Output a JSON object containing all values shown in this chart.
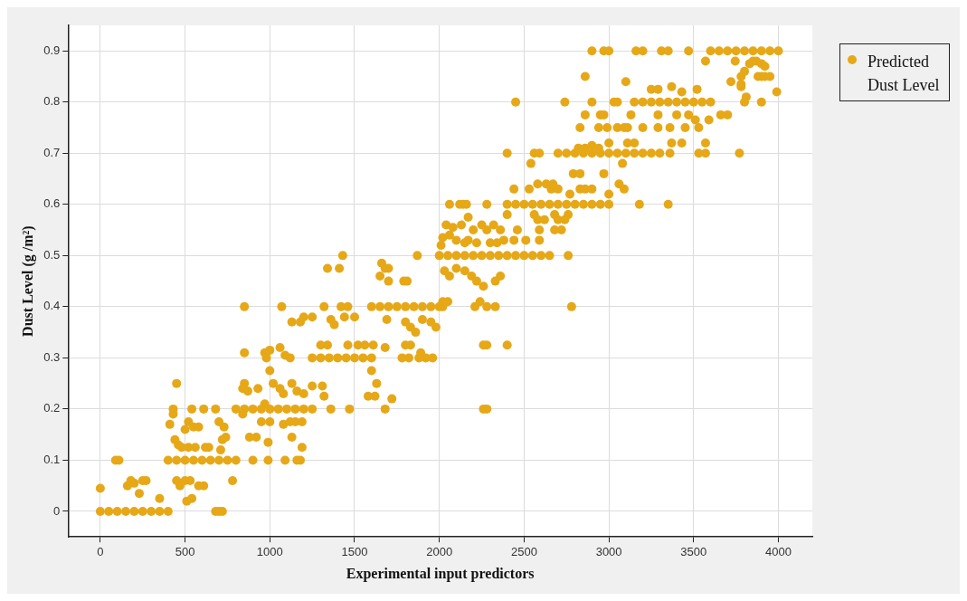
{
  "chart_data": {
    "type": "scatter",
    "xlabel": "Experimental input predictors",
    "ylabel": "Dust Level (g /m²)",
    "xlim": [
      -190,
      4200
    ],
    "ylim": [
      -0.05,
      0.95
    ],
    "xticks": [
      0,
      500,
      1000,
      1500,
      2000,
      2500,
      3000,
      3500,
      4000
    ],
    "yticks": [
      0,
      0.1,
      0.2,
      0.3,
      0.4,
      0.5,
      0.6,
      0.7,
      0.8,
      0.9
    ],
    "grid": true,
    "legend": "top right",
    "marker": "circle",
    "series": [
      {
        "name": "Predicted Dust Level",
        "color": "#e6a817",
        "x": [
          0,
          50,
          100,
          150,
          200,
          250,
          300,
          350,
          400,
          680,
          700,
          720,
          0,
          90,
          110,
          160,
          180,
          200,
          230,
          250,
          270,
          350,
          400,
          450,
          500,
          550,
          600,
          650,
          700,
          750,
          800,
          900,
          990,
          1090,
          1160,
          1180,
          450,
          430,
          430,
          410,
          440,
          460,
          480,
          520,
          560,
          620,
          640,
          500,
          520,
          550,
          580,
          540,
          610,
          680,
          700,
          730,
          720,
          710,
          740,
          450,
          470,
          500,
          530,
          580,
          610,
          510,
          540,
          780,
          800,
          850,
          900,
          950,
          1000,
          1050,
          1100,
          1150,
          1200,
          1250,
          850,
          840,
          870,
          930,
          840,
          880,
          920,
          990,
          970,
          1000,
          1020,
          1060,
          1080,
          1130,
          1160,
          1200,
          1250,
          950,
          1000,
          1080,
          1120,
          1150,
          1190,
          1130,
          1190,
          1360,
          1470,
          850,
          1070,
          850,
          970,
          980,
          1000,
          1060,
          1090,
          1120,
          1130,
          1180,
          1200,
          1250,
          1320,
          1360,
          1380,
          1420,
          1440,
          1460,
          1500,
          1340,
          1410,
          1430,
          1250,
          1300,
          1350,
          1400,
          1450,
          1500,
          1550,
          1600,
          1300,
          1340,
          1460,
          1520,
          1560,
          1610,
          1680,
          1600,
          1580,
          1620,
          1630,
          1680,
          1720,
          1310,
          1320,
          1600,
          1650,
          1700,
          1750,
          1800,
          1850,
          1900,
          1950,
          2000,
          1660,
          1680,
          1650,
          1700,
          1700,
          1790,
          1810,
          1870,
          1690,
          1800,
          1830,
          1860,
          1900,
          1950,
          1980,
          1800,
          1830,
          1780,
          1820,
          1880,
          1920,
          1960,
          1890,
          2020,
          2020,
          2000,
          2050,
          2100,
          2150,
          2200,
          2250,
          2300,
          2350,
          2400,
          2450,
          2500,
          2550,
          2600,
          2650,
          2060,
          2120,
          2140,
          2040,
          2080,
          2130,
          2170,
          2200,
          2020,
          2010,
          2060,
          2100,
          2150,
          2250,
          2280,
          2320,
          2360,
          2170,
          2220,
          2300,
          2340,
          2380,
          2030,
          2060,
          2100,
          2150,
          2190,
          2220,
          2260,
          2330,
          2360,
          2050,
          2210,
          2240,
          2280,
          2330,
          2260,
          2280,
          2400,
          2260,
          2280,
          2760,
          2780,
          2440,
          2510,
          2590,
          2400,
          2560,
          2680,
          2760,
          2580,
          2620,
          2700,
          2740,
          2460,
          2590,
          2680,
          2720,
          2400,
          2450,
          2500,
          2550,
          2600,
          2650,
          2700,
          2750,
          2800,
          2850,
          2900,
          2950,
          3000,
          2160,
          2280,
          3180,
          3350,
          2540,
          3080,
          2790,
          2830,
          2970,
          2580,
          2630,
          2670,
          3060,
          2770,
          3000,
          2440,
          2530,
          2660,
          2700,
          2830,
          2860,
          2900,
          3090,
          2700,
          2750,
          2800,
          2850,
          2900,
          2950,
          3000,
          3050,
          3100,
          3150,
          3200,
          3250,
          3300,
          2400,
          2560,
          2590,
          3360,
          3530,
          3570,
          3770,
          2820,
          2860,
          2900,
          2940,
          3000,
          3110,
          3150,
          3370,
          3430,
          3570,
          2830,
          2940,
          2990,
          3050,
          3090,
          3110,
          3200,
          3290,
          3360,
          3450,
          3530,
          2860,
          2950,
          2970,
          3130,
          3290,
          3400,
          3470,
          3510,
          3590,
          3660,
          3700,
          3150,
          3200,
          3250,
          3300,
          3350,
          3400,
          3450,
          3500,
          3550,
          3600,
          2450,
          2740,
          2900,
          3030,
          3050,
          3250,
          3290,
          3370,
          3430,
          3520,
          2860,
          3100,
          3720,
          3745,
          3780,
          3800,
          3830,
          3850,
          3870,
          3900,
          3920,
          3780,
          3880,
          3900,
          3920,
          3950,
          3990,
          3780,
          3800,
          3900,
          3810,
          3600,
          3650,
          3700,
          3750,
          3800,
          3850,
          3900,
          3950,
          4000,
          2900,
          2970,
          3000,
          3160,
          3200,
          3310,
          3350,
          3470,
          3570
        ],
        "values": [
          0,
          0,
          0,
          0,
          0,
          0,
          0,
          0,
          0,
          0,
          0,
          0,
          0.045,
          0.1,
          0.1,
          0.05,
          0.06,
          0.055,
          0.035,
          0.06,
          0.06,
          0.025,
          0.1,
          0.1,
          0.1,
          0.1,
          0.1,
          0.1,
          0.1,
          0.1,
          0.1,
          0.1,
          0.1,
          0.1,
          0.1,
          0.1,
          0.25,
          0.2,
          0.19,
          0.17,
          0.14,
          0.13,
          0.125,
          0.125,
          0.125,
          0.125,
          0.125,
          0.16,
          0.175,
          0.165,
          0.165,
          0.2,
          0.2,
          0.2,
          0.175,
          0.165,
          0.14,
          0.12,
          0.145,
          0.06,
          0.05,
          0.06,
          0.06,
          0.05,
          0.05,
          0.02,
          0.025,
          0.06,
          0.2,
          0.2,
          0.2,
          0.2,
          0.2,
          0.2,
          0.2,
          0.2,
          0.2,
          0.2,
          0.25,
          0.24,
          0.235,
          0.24,
          0.19,
          0.145,
          0.145,
          0.135,
          0.21,
          0.275,
          0.25,
          0.24,
          0.23,
          0.25,
          0.235,
          0.23,
          0.245,
          0.175,
          0.175,
          0.17,
          0.175,
          0.175,
          0.175,
          0.145,
          0.125,
          0.2,
          0.2,
          0.4,
          0.4,
          0.31,
          0.31,
          0.3,
          0.315,
          0.32,
          0.305,
          0.3,
          0.37,
          0.37,
          0.38,
          0.38,
          0.4,
          0.375,
          0.365,
          0.4,
          0.38,
          0.4,
          0.38,
          0.475,
          0.475,
          0.5,
          0.3,
          0.3,
          0.3,
          0.3,
          0.3,
          0.3,
          0.3,
          0.3,
          0.325,
          0.325,
          0.325,
          0.325,
          0.325,
          0.325,
          0.32,
          0.275,
          0.225,
          0.225,
          0.25,
          0.2,
          0.22,
          0.245,
          0.225,
          0.4,
          0.4,
          0.4,
          0.4,
          0.4,
          0.4,
          0.4,
          0.4,
          0.4,
          0.485,
          0.475,
          0.46,
          0.45,
          0.475,
          0.45,
          0.45,
          0.5,
          0.375,
          0.37,
          0.36,
          0.35,
          0.375,
          0.37,
          0.36,
          0.325,
          0.325,
          0.3,
          0.3,
          0.3,
          0.3,
          0.3,
          0.31,
          0.4,
          0.41,
          0.5,
          0.5,
          0.5,
          0.5,
          0.5,
          0.5,
          0.5,
          0.5,
          0.5,
          0.5,
          0.5,
          0.5,
          0.5,
          0.5,
          0.6,
          0.6,
          0.6,
          0.56,
          0.555,
          0.56,
          0.575,
          0.55,
          0.535,
          0.52,
          0.54,
          0.53,
          0.525,
          0.56,
          0.55,
          0.56,
          0.55,
          0.53,
          0.525,
          0.525,
          0.525,
          0.53,
          0.47,
          0.46,
          0.475,
          0.47,
          0.46,
          0.45,
          0.44,
          0.45,
          0.46,
          0.41,
          0.4,
          0.41,
          0.4,
          0.4,
          0.325,
          0.325,
          0.325,
          0.2,
          0.2,
          0.5,
          0.4,
          0.53,
          0.53,
          0.53,
          0.58,
          0.58,
          0.58,
          0.58,
          0.57,
          0.57,
          0.57,
          0.57,
          0.55,
          0.55,
          0.55,
          0.55,
          0.6,
          0.6,
          0.6,
          0.6,
          0.6,
          0.6,
          0.6,
          0.6,
          0.6,
          0.6,
          0.6,
          0.6,
          0.6,
          0.6,
          0.6,
          0.6,
          0.6,
          0.68,
          0.68,
          0.66,
          0.66,
          0.66,
          0.64,
          0.64,
          0.64,
          0.64,
          0.62,
          0.62,
          0.63,
          0.63,
          0.63,
          0.63,
          0.63,
          0.63,
          0.63,
          0.63,
          0.7,
          0.7,
          0.7,
          0.7,
          0.7,
          0.7,
          0.7,
          0.7,
          0.7,
          0.7,
          0.7,
          0.7,
          0.7,
          0.7,
          0.7,
          0.7,
          0.7,
          0.7,
          0.7,
          0.7,
          0.71,
          0.71,
          0.715,
          0.71,
          0.72,
          0.72,
          0.72,
          0.72,
          0.72,
          0.72,
          0.75,
          0.75,
          0.75,
          0.75,
          0.75,
          0.75,
          0.75,
          0.75,
          0.75,
          0.75,
          0.75,
          0.775,
          0.775,
          0.775,
          0.775,
          0.775,
          0.775,
          0.775,
          0.765,
          0.765,
          0.775,
          0.775,
          0.8,
          0.8,
          0.8,
          0.8,
          0.8,
          0.8,
          0.8,
          0.8,
          0.8,
          0.8,
          0.8,
          0.8,
          0.8,
          0.8,
          0.8,
          0.825,
          0.825,
          0.83,
          0.82,
          0.825,
          0.85,
          0.84,
          0.84,
          0.88,
          0.83,
          0.86,
          0.875,
          0.88,
          0.88,
          0.875,
          0.87,
          0.85,
          0.85,
          0.85,
          0.85,
          0.85,
          0.82,
          0.835,
          0.8,
          0.8,
          0.81,
          0.9,
          0.9,
          0.9,
          0.9,
          0.9,
          0.9,
          0.9,
          0.9,
          0.9,
          0.9,
          0.9,
          0.9,
          0.9,
          0.9,
          0.9,
          0.9,
          0.9,
          0.88
        ]
      }
    ]
  }
}
